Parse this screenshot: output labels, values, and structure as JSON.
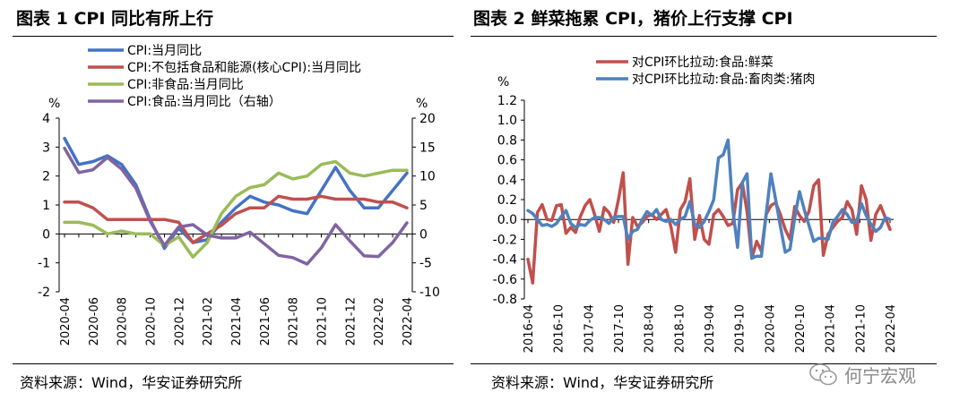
{
  "left_panel": {
    "title": "图表 1 CPI 同比有所上行",
    "source": "资料来源：Wind，华安证券研究所"
  },
  "right_panel": {
    "title": "图表 2  鲜菜拖累 CPI，猪价上行支撑 CPI",
    "source": "资料来源：Wind，华安证券研究所"
  },
  "watermark": {
    "text": "何宁宏观",
    "icon": "wechat-icon"
  },
  "chart_data": [
    {
      "type": "line",
      "title": "图表 1 CPI 同比有所上行",
      "left_unit": "%",
      "right_unit": "%",
      "ylim": [
        -2,
        4
      ],
      "yticks": [
        -2,
        -1,
        0,
        1,
        2,
        3,
        4
      ],
      "y2lim": [
        -10,
        20
      ],
      "y2ticks": [
        -10,
        -5,
        0,
        5,
        10,
        15,
        20
      ],
      "x": [
        "2020-04",
        "2020-05",
        "2020-06",
        "2020-07",
        "2020-08",
        "2020-09",
        "2020-10",
        "2020-11",
        "2020-12",
        "2021-01",
        "2021-02",
        "2021-03",
        "2021-04",
        "2021-05",
        "2021-06",
        "2021-07",
        "2021-08",
        "2021-09",
        "2021-10",
        "2021-11",
        "2021-12",
        "2022-01",
        "2022-02",
        "2022-03",
        "2022-04"
      ],
      "xtick_labels": [
        "2020-04",
        "2020-06",
        "2020-08",
        "2020-10",
        "2020-12",
        "2021-02",
        "2021-04",
        "2021-06",
        "2021-08",
        "2021-10",
        "2021-12",
        "2022-02",
        "2022-04"
      ],
      "series": [
        {
          "name": "CPI:当月同比",
          "color": "#4472C4",
          "axis": "left",
          "values": [
            3.3,
            2.4,
            2.5,
            2.7,
            2.4,
            1.7,
            0.5,
            -0.5,
            0.2,
            -0.3,
            -0.2,
            0.4,
            0.9,
            1.3,
            1.1,
            1.0,
            0.8,
            0.7,
            1.5,
            2.3,
            1.5,
            0.9,
            0.9,
            1.5,
            2.1
          ]
        },
        {
          "name": "CPI:不包括食品和能源(核心CPI):当月同比",
          "color": "#C0504D",
          "axis": "left",
          "values": [
            1.1,
            1.1,
            0.9,
            0.5,
            0.5,
            0.5,
            0.5,
            0.5,
            0.4,
            -0.3,
            0.0,
            0.3,
            0.7,
            0.9,
            0.9,
            1.3,
            1.2,
            1.2,
            1.3,
            1.2,
            1.2,
            1.2,
            1.1,
            1.1,
            0.9
          ]
        },
        {
          "name": "CPI:非食品:当月同比",
          "color": "#9BBB59",
          "axis": "left",
          "values": [
            0.4,
            0.4,
            0.3,
            0.0,
            0.1,
            0.0,
            0.0,
            -0.4,
            -0.1,
            -0.8,
            -0.3,
            0.7,
            1.3,
            1.6,
            1.7,
            2.1,
            1.9,
            2.0,
            2.4,
            2.5,
            2.1,
            2.0,
            2.1,
            2.2,
            2.2
          ]
        },
        {
          "name": "CPI:食品:当月同比（右轴）",
          "color": "#8064A2",
          "axis": "right",
          "values": [
            14.8,
            10.6,
            11.1,
            13.2,
            11.2,
            7.9,
            2.2,
            -2.0,
            1.2,
            1.6,
            -0.2,
            -0.7,
            -0.7,
            0.3,
            -1.7,
            -3.7,
            -4.1,
            -5.2,
            -2.4,
            1.6,
            -1.2,
            -3.8,
            -3.9,
            -1.5,
            1.9
          ]
        }
      ]
    },
    {
      "type": "line",
      "title": "图表 2  鲜菜拖累 CPI，猪价上行支撑 CPI",
      "left_unit": "%",
      "ylim": [
        -0.8,
        1.2
      ],
      "yticks": [
        -0.8,
        -0.6,
        -0.4,
        -0.2,
        0.0,
        0.2,
        0.4,
        0.6,
        0.8,
        1.0,
        1.2
      ],
      "x_start": "2016-04",
      "x_end": "2022-04",
      "xtick_labels": [
        "2016-04",
        "2016-10",
        "2017-04",
        "2017-10",
        "2018-04",
        "2018-10",
        "2019-04",
        "2019-10",
        "2020-04",
        "2020-10",
        "2021-04",
        "2021-10",
        "2022-04"
      ],
      "series": [
        {
          "name": "对CPI环比拉动:食品:鲜菜",
          "color": "#C0504D",
          "values": [
            -0.4,
            -0.64,
            0.07,
            0.15,
            0.0,
            -0.01,
            0.14,
            0.15,
            -0.14,
            -0.08,
            -0.13,
            0.03,
            0.14,
            0.2,
            0.05,
            -0.12,
            0.12,
            0.07,
            -0.03,
            0.2,
            0.47,
            -0.45,
            0.02,
            -0.07,
            -0.03,
            0.03,
            0.05,
            0.0,
            0.05,
            0.1,
            -0.07,
            -0.33,
            0.1,
            0.18,
            0.41,
            -0.2,
            0.04,
            -0.2,
            -0.25,
            0.05,
            0.1,
            0.03,
            -0.06,
            -0.04,
            0.3,
            0.37,
            0.08,
            -0.39,
            -0.22,
            -0.32,
            0.05,
            0.14,
            0.17,
            0.05,
            -0.1,
            -0.2,
            0.13,
            0.04,
            -0.02,
            0.08,
            0.34,
            0.4,
            -0.36,
            -0.15,
            -0.08,
            -0.02,
            0.02,
            0.18,
            0.1,
            -0.15,
            0.34,
            0.2,
            -0.21,
            0.05,
            0.14,
            0.02,
            -0.1
          ]
        },
        {
          "name": "对CPI环比拉动:食品:畜肉类:猪肉",
          "color": "#4F81BD",
          "values": [
            0.09,
            0.06,
            0.0,
            -0.06,
            -0.05,
            -0.07,
            -0.04,
            0.03,
            0.09,
            -0.04,
            -0.08,
            -0.05,
            -0.06,
            -0.01,
            0.02,
            0.02,
            0.0,
            -0.04,
            0.02,
            0.03,
            0.03,
            -0.2,
            -0.12,
            -0.1,
            0.0,
            0.08,
            0.04,
            0.1,
            0.0,
            -0.02,
            0.0,
            -0.05,
            0.0,
            0.03,
            0.18,
            -0.05,
            -0.08,
            -0.02,
            0.08,
            0.2,
            0.62,
            0.65,
            0.8,
            0.1,
            -0.28,
            0.37,
            0.46,
            -0.39,
            -0.37,
            -0.37,
            0.05,
            0.46,
            0.2,
            -0.07,
            -0.33,
            -0.3,
            0.02,
            0.28,
            0.1,
            -0.06,
            -0.22,
            -0.19,
            -0.19,
            -0.2,
            -0.03,
            0.03,
            0.1,
            0.05,
            -0.03,
            -0.02,
            0.16,
            0.04,
            -0.05,
            -0.12,
            -0.08,
            0.02,
            0.0
          ]
        }
      ]
    }
  ]
}
